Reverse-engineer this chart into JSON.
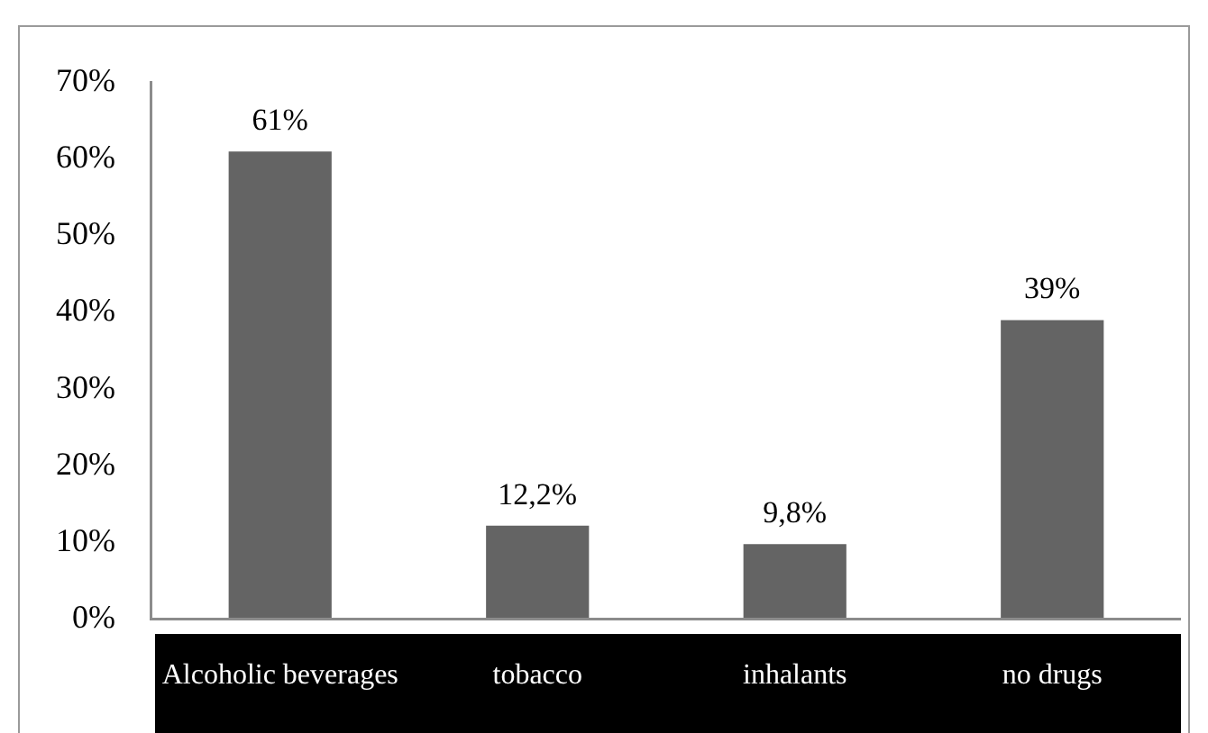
{
  "chart_data": {
    "type": "bar",
    "categories": [
      "Alcoholic beverages",
      "tobacco",
      "inhalants",
      "no drugs"
    ],
    "values": [
      61,
      12.2,
      9.8,
      39
    ],
    "value_labels": [
      "61%",
      "12,2%",
      "9,8%",
      "39%"
    ],
    "color": "#646464",
    "ylim": [
      0,
      70
    ],
    "yticks": [
      {
        "value": 0,
        "label": "0%"
      },
      {
        "value": 10,
        "label": "10%"
      },
      {
        "value": 20,
        "label": "20%"
      },
      {
        "value": 30,
        "label": "30%"
      },
      {
        "value": 40,
        "label": "40%"
      },
      {
        "value": 50,
        "label": "50%"
      },
      {
        "value": 60,
        "label": "60%"
      },
      {
        "value": 70,
        "label": "70%"
      }
    ],
    "grid": false,
    "legend": false
  }
}
